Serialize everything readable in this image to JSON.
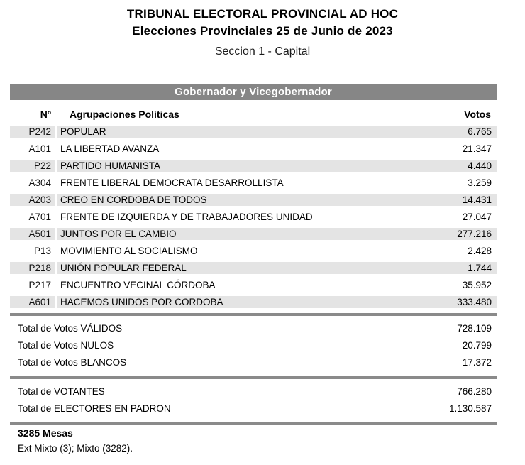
{
  "header": {
    "title_line1": "TRIBUNAL ELECTORAL PROVINCIAL AD HOC",
    "title_line2": "Elecciones Provinciales 25 de Junio de 2023",
    "section": "Seccion 1 - Capital"
  },
  "table": {
    "category_banner": "Gobernador y Vicegobernador",
    "columns": {
      "number": "Nº",
      "party": "Agrupaciones Políticas",
      "votes": "Votos"
    },
    "rows": [
      {
        "code": "P242",
        "party": "POPULAR",
        "votes": "6.765"
      },
      {
        "code": "A101",
        "party": "LA LIBERTAD AVANZA",
        "votes": "21.347"
      },
      {
        "code": "P22",
        "party": "PARTIDO HUMANISTA",
        "votes": "4.440"
      },
      {
        "code": "A304",
        "party": "FRENTE LIBERAL DEMOCRATA DESARROLLISTA",
        "votes": "3.259"
      },
      {
        "code": "A203",
        "party": "CREO EN CORDOBA DE TODOS",
        "votes": "14.431"
      },
      {
        "code": "A701",
        "party": "FRENTE DE IZQUIERDA Y DE TRABAJADORES UNIDAD",
        "votes": "27.047"
      },
      {
        "code": "A501",
        "party": "JUNTOS POR EL CAMBIO",
        "votes": "277.216"
      },
      {
        "code": "P13",
        "party": "MOVIMIENTO AL SOCIALISMO",
        "votes": "2.428"
      },
      {
        "code": "P218",
        "party": "UNIÓN POPULAR FEDERAL",
        "votes": "1.744"
      },
      {
        "code": "P217",
        "party": "ENCUENTRO VECINAL CÓRDOBA",
        "votes": "35.952"
      },
      {
        "code": "A601",
        "party": "HACEMOS UNIDOS POR CORDOBA",
        "votes": "333.480"
      }
    ],
    "totals_votes": [
      {
        "label": "Total de Votos VÁLIDOS",
        "value": "728.109"
      },
      {
        "label": "Total de Votos NULOS",
        "value": "20.799"
      },
      {
        "label": "Total de Votos BLANCOS",
        "value": "17.372"
      }
    ],
    "totals_electors": [
      {
        "label": "Total de VOTANTES",
        "value": "766.280"
      },
      {
        "label": "Total de ELECTORES EN PADRON",
        "value": "1.130.587"
      }
    ]
  },
  "footer": {
    "mesas": "3285 Mesas",
    "detail": "Ext Mixto (3); Mixto (3282)."
  },
  "colors": {
    "banner_bg": "#868686",
    "banner_text": "#ffffff",
    "row_shade": "#e4e4e4",
    "separator": "#8a8a8a",
    "text": "#000000"
  }
}
